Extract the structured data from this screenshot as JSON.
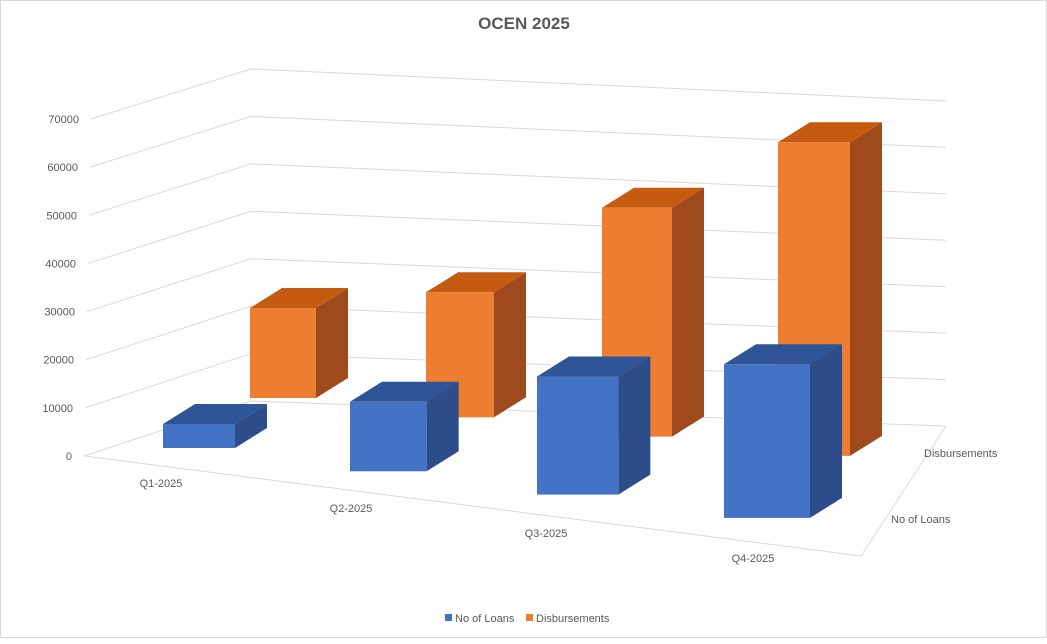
{
  "chart_data": {
    "type": "bar",
    "variant": "3d-column",
    "title": "OCEN 2025",
    "categories": [
      "Q1-2025",
      "Q2-2025",
      "Q3-2025",
      "Q4-2025"
    ],
    "series": [
      {
        "name": "No of Loans",
        "values": [
          5000,
          14000,
          23000,
          29000
        ],
        "color": "#4472c4"
      },
      {
        "name": "Disbursements",
        "values": [
          20000,
          27000,
          48000,
          64000
        ],
        "color": "#ed7d31"
      }
    ],
    "yticks": [
      "0",
      "10000",
      "20000",
      "30000",
      "40000",
      "50000",
      "60000",
      "70000"
    ],
    "ylim": [
      0,
      70000
    ],
    "grid": true,
    "legend": "bottom"
  }
}
